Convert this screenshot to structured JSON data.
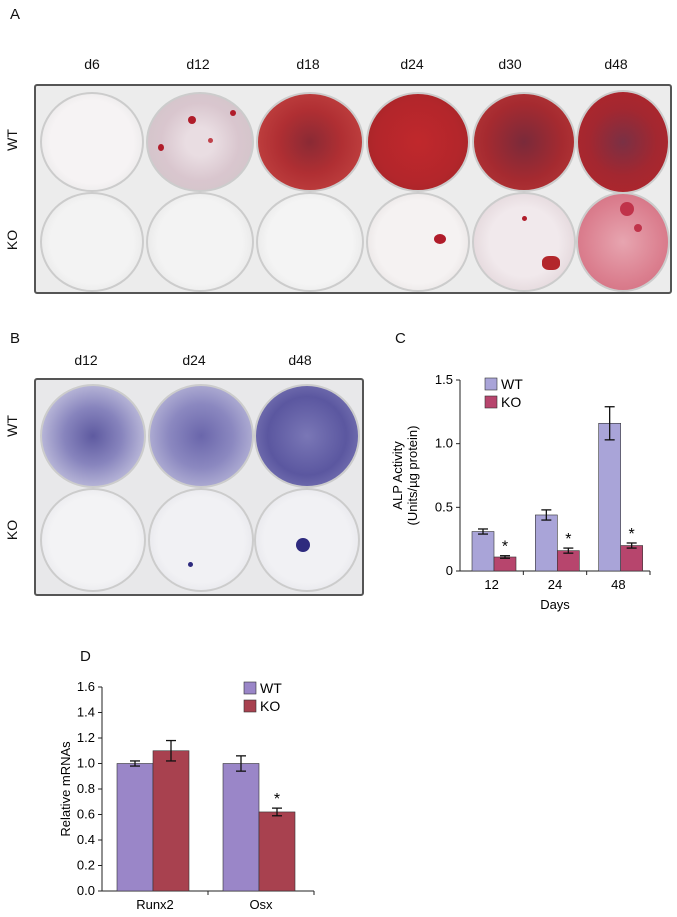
{
  "panel_a": {
    "letter": "A",
    "days": [
      "d6",
      "d12",
      "d18",
      "d24",
      "d30",
      "d48"
    ],
    "rows": [
      "WT",
      "KO"
    ]
  },
  "panel_b": {
    "letter": "B",
    "days": [
      "d12",
      "d24",
      "d48"
    ],
    "rows": [
      "WT",
      "KO"
    ]
  },
  "panel_c": {
    "letter": "C"
  },
  "panel_d": {
    "letter": "D"
  },
  "colors": {
    "wt": "#a9a4d8",
    "ko": "#b7456d",
    "wt_d": "#9a86c8",
    "ko_d": "#a8414f",
    "alizarin": "#b8262a",
    "alp_blue": "#2e2a7e"
  },
  "chart_data": [
    {
      "id": "C",
      "type": "bar",
      "categories": [
        "12",
        "24",
        "48"
      ],
      "xlabel": "Days",
      "ylabel": "ALP Activity",
      "ylabel2": "(Units/µg protein)",
      "ylim": [
        0,
        1.5
      ],
      "yticks": [
        "0",
        "0.5",
        "1.0",
        "1.5"
      ],
      "series": [
        {
          "name": "WT",
          "values": [
            0.31,
            0.44,
            1.16
          ],
          "errors": [
            0.02,
            0.04,
            0.13
          ]
        },
        {
          "name": "KO",
          "values": [
            0.11,
            0.16,
            0.2
          ],
          "errors": [
            0.01,
            0.02,
            0.02
          ]
        }
      ],
      "annotations": [
        "*",
        "*",
        "*"
      ],
      "legend": "top-left"
    },
    {
      "id": "D",
      "type": "bar",
      "categories": [
        "Runx2",
        "Osx"
      ],
      "xlabel": "",
      "ylabel": "Relative mRNAs",
      "ylim": [
        0,
        1.6
      ],
      "yticks": [
        "0.0",
        "0.2",
        "0.4",
        "0.6",
        "0.8",
        "1.0",
        "1.2",
        "1.4",
        "1.6"
      ],
      "series": [
        {
          "name": "WT",
          "values": [
            1.0,
            1.0
          ],
          "errors": [
            0.02,
            0.06
          ]
        },
        {
          "name": "KO",
          "values": [
            1.1,
            0.62
          ],
          "errors": [
            0.08,
            0.03
          ]
        }
      ],
      "annotations": [
        "",
        "*"
      ],
      "legend": "top-center"
    }
  ]
}
